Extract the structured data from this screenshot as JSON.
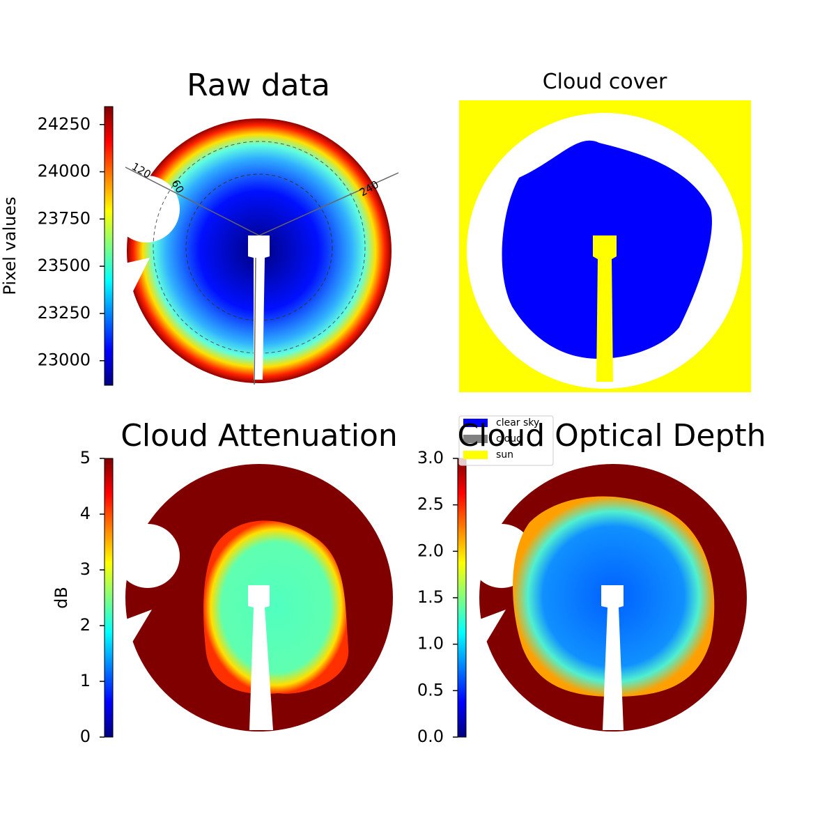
{
  "chart_data": [
    {
      "type": "image",
      "title": "Raw data",
      "colorbar_label": "Pixel values",
      "colormap": "jet",
      "ylim": [
        22870,
        24345
      ],
      "yticks": [
        23000,
        23250,
        23500,
        23750,
        24000,
        24250
      ],
      "annotations": [
        "120",
        "60",
        "240"
      ]
    },
    {
      "type": "image",
      "title": "Cloud cover",
      "series": [
        {
          "name": "clear sky",
          "color": "#0000ff"
        },
        {
          "name": "cloud",
          "color": "#808080"
        },
        {
          "name": "sun",
          "color": "#ffff00"
        }
      ]
    },
    {
      "type": "image",
      "title": "Cloud Attenuation",
      "colorbar_label": "dB",
      "colormap": "jet",
      "ylim": [
        0,
        5
      ],
      "yticks": [
        0,
        1,
        2,
        3,
        4,
        5
      ]
    },
    {
      "type": "image",
      "title": "Cloud Optical Depth",
      "colormap": "jet",
      "ylim": [
        0,
        3
      ],
      "yticks": [
        {
          "value": 0,
          "label": "0.0"
        },
        {
          "value": 0.5,
          "label": "0.5"
        },
        {
          "value": 1,
          "label": "1.0"
        },
        {
          "value": 1.5,
          "label": "1.5"
        },
        {
          "value": 2,
          "label": "2.0"
        },
        {
          "value": 2.5,
          "label": "2.5"
        },
        {
          "value": 3,
          "label": "3.0"
        }
      ]
    }
  ]
}
